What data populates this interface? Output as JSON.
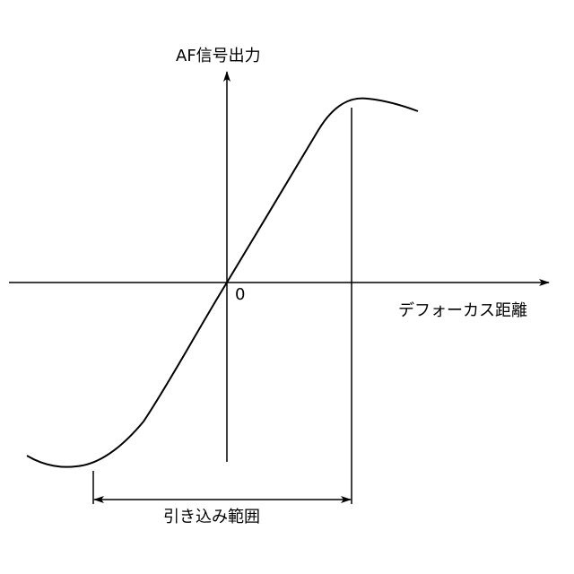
{
  "labels": {
    "y_axis": "AF信号出力",
    "x_axis": "デフォーカス距離",
    "origin": "0",
    "range": "引き込み範囲"
  },
  "colors": {
    "line": "#000000",
    "background": "#ffffff"
  }
}
